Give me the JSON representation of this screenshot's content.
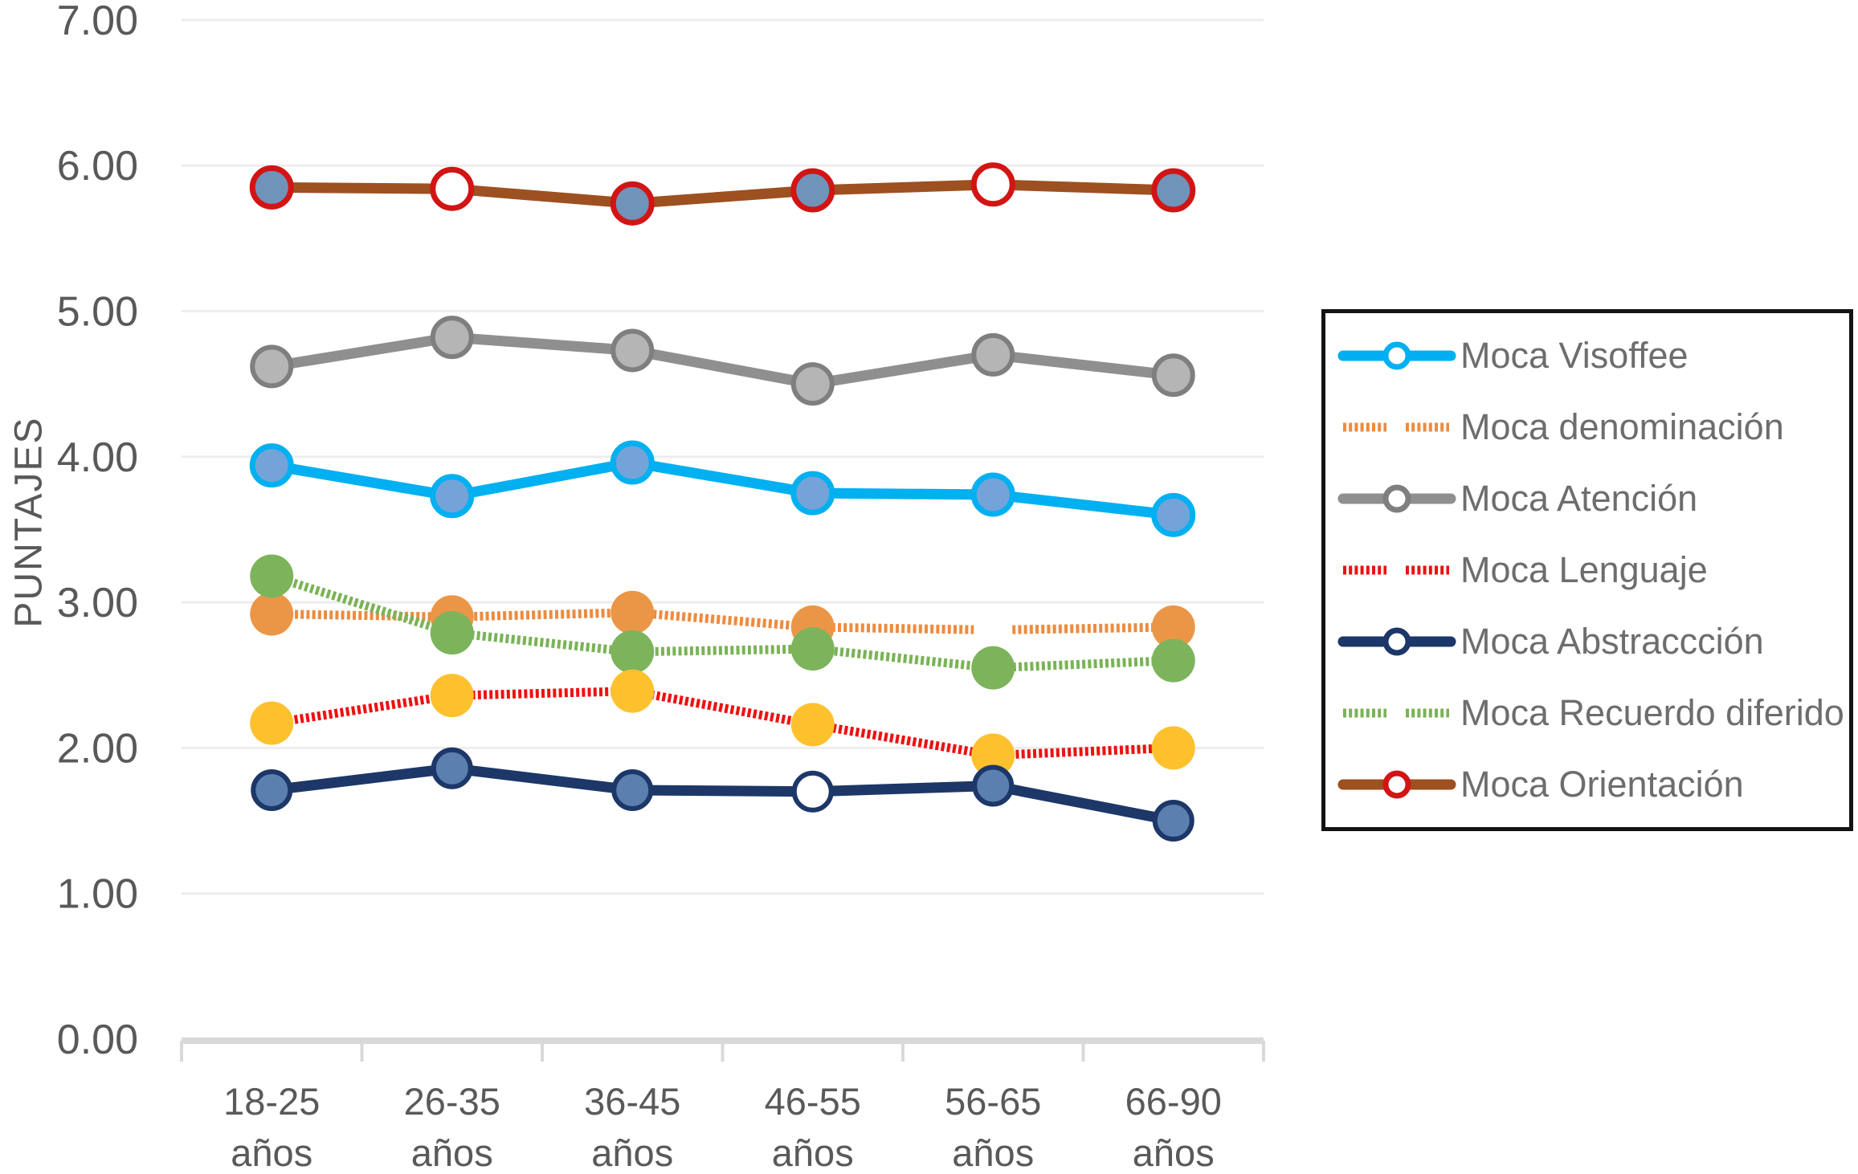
{
  "chart_data": {
    "type": "line",
    "title": "",
    "ylabel": "PUNTAJES",
    "xlabel": "",
    "ylim": [
      0,
      7
    ],
    "ytick_step": 1,
    "ytick_labels": [
      "0.00",
      "1.00",
      "2.00",
      "3.00",
      "4.00",
      "5.00",
      "6.00",
      "7.00"
    ],
    "categories": [
      "18-25 años",
      "26-35 años",
      "36-45 años",
      "46-55 años",
      "56-65 años",
      "66-90 años"
    ],
    "grid": true,
    "legend_position": "right",
    "colors": {
      "axis_line": "#d9d9d9",
      "gridline": "#ededed",
      "tick_text": "#595959",
      "legend_text": "#6d6d6d",
      "legend_border": "#141414",
      "background": "#ffffff"
    },
    "series": [
      {
        "name": "Moca Visoffee",
        "color": "#00b0f0",
        "style": "solid",
        "marker": {
          "type": "open",
          "radius": 24,
          "ring": "#00b0f0",
          "ring_width": 7,
          "fill": "#74a3d9"
        },
        "values": [
          3.94,
          3.73,
          3.96,
          3.75,
          3.74,
          3.6
        ]
      },
      {
        "name": "Moca denominación",
        "color": "#ed8b3f",
        "style": "dashed",
        "marker": {
          "type": "dot",
          "radius": 27,
          "fill": "#eb9647",
          "skip": [
            4
          ]
        },
        "line_gap_at": 4,
        "values": [
          2.92,
          2.9,
          2.93,
          2.83,
          2.81,
          2.83
        ]
      },
      {
        "name": "Moca Atención",
        "color": "#8f8f8f",
        "style": "solid",
        "marker": {
          "type": "open",
          "radius": 24,
          "ring": "#7f7f7f",
          "ring_width": 6,
          "fill": "#b5b5b5"
        },
        "values": [
          4.62,
          4.82,
          4.73,
          4.5,
          4.7,
          4.56
        ]
      },
      {
        "name": "Moca Lenguaje",
        "color": "#ee1111",
        "style": "dashed",
        "marker": {
          "type": "dot",
          "radius": 27,
          "fill": "#fec12e"
        },
        "values": [
          2.17,
          2.36,
          2.39,
          2.16,
          1.95,
          2.0
        ]
      },
      {
        "name": "Moca Abstraccción",
        "color": "#1c3768",
        "style": "solid",
        "marker": {
          "type": "open",
          "radius": 23,
          "ring": "#1c3768",
          "ring_width": 6,
          "fill": "#5b7fae",
          "white_at": [
            3
          ]
        },
        "values": [
          1.71,
          1.86,
          1.71,
          1.7,
          1.74,
          1.5
        ]
      },
      {
        "name": "Moca Recuerdo diferido",
        "color": "#7ab356",
        "style": "dashed",
        "marker": {
          "type": "dot",
          "radius": 27,
          "fill": "#7db45b"
        },
        "values": [
          3.18,
          2.79,
          2.66,
          2.68,
          2.55,
          2.6
        ]
      },
      {
        "name": "Moca Orientación",
        "color": "#9d5020",
        "style": "solid",
        "marker": {
          "type": "open",
          "radius": 24,
          "ring": "#d31414",
          "ring_width": 7,
          "fill": "#7093ba",
          "white_at": [
            1,
            4
          ]
        },
        "values": [
          5.85,
          5.84,
          5.74,
          5.83,
          5.87,
          5.83
        ]
      }
    ],
    "draw_order": [
      1,
      5,
      3,
      0,
      2,
      4,
      6
    ]
  }
}
